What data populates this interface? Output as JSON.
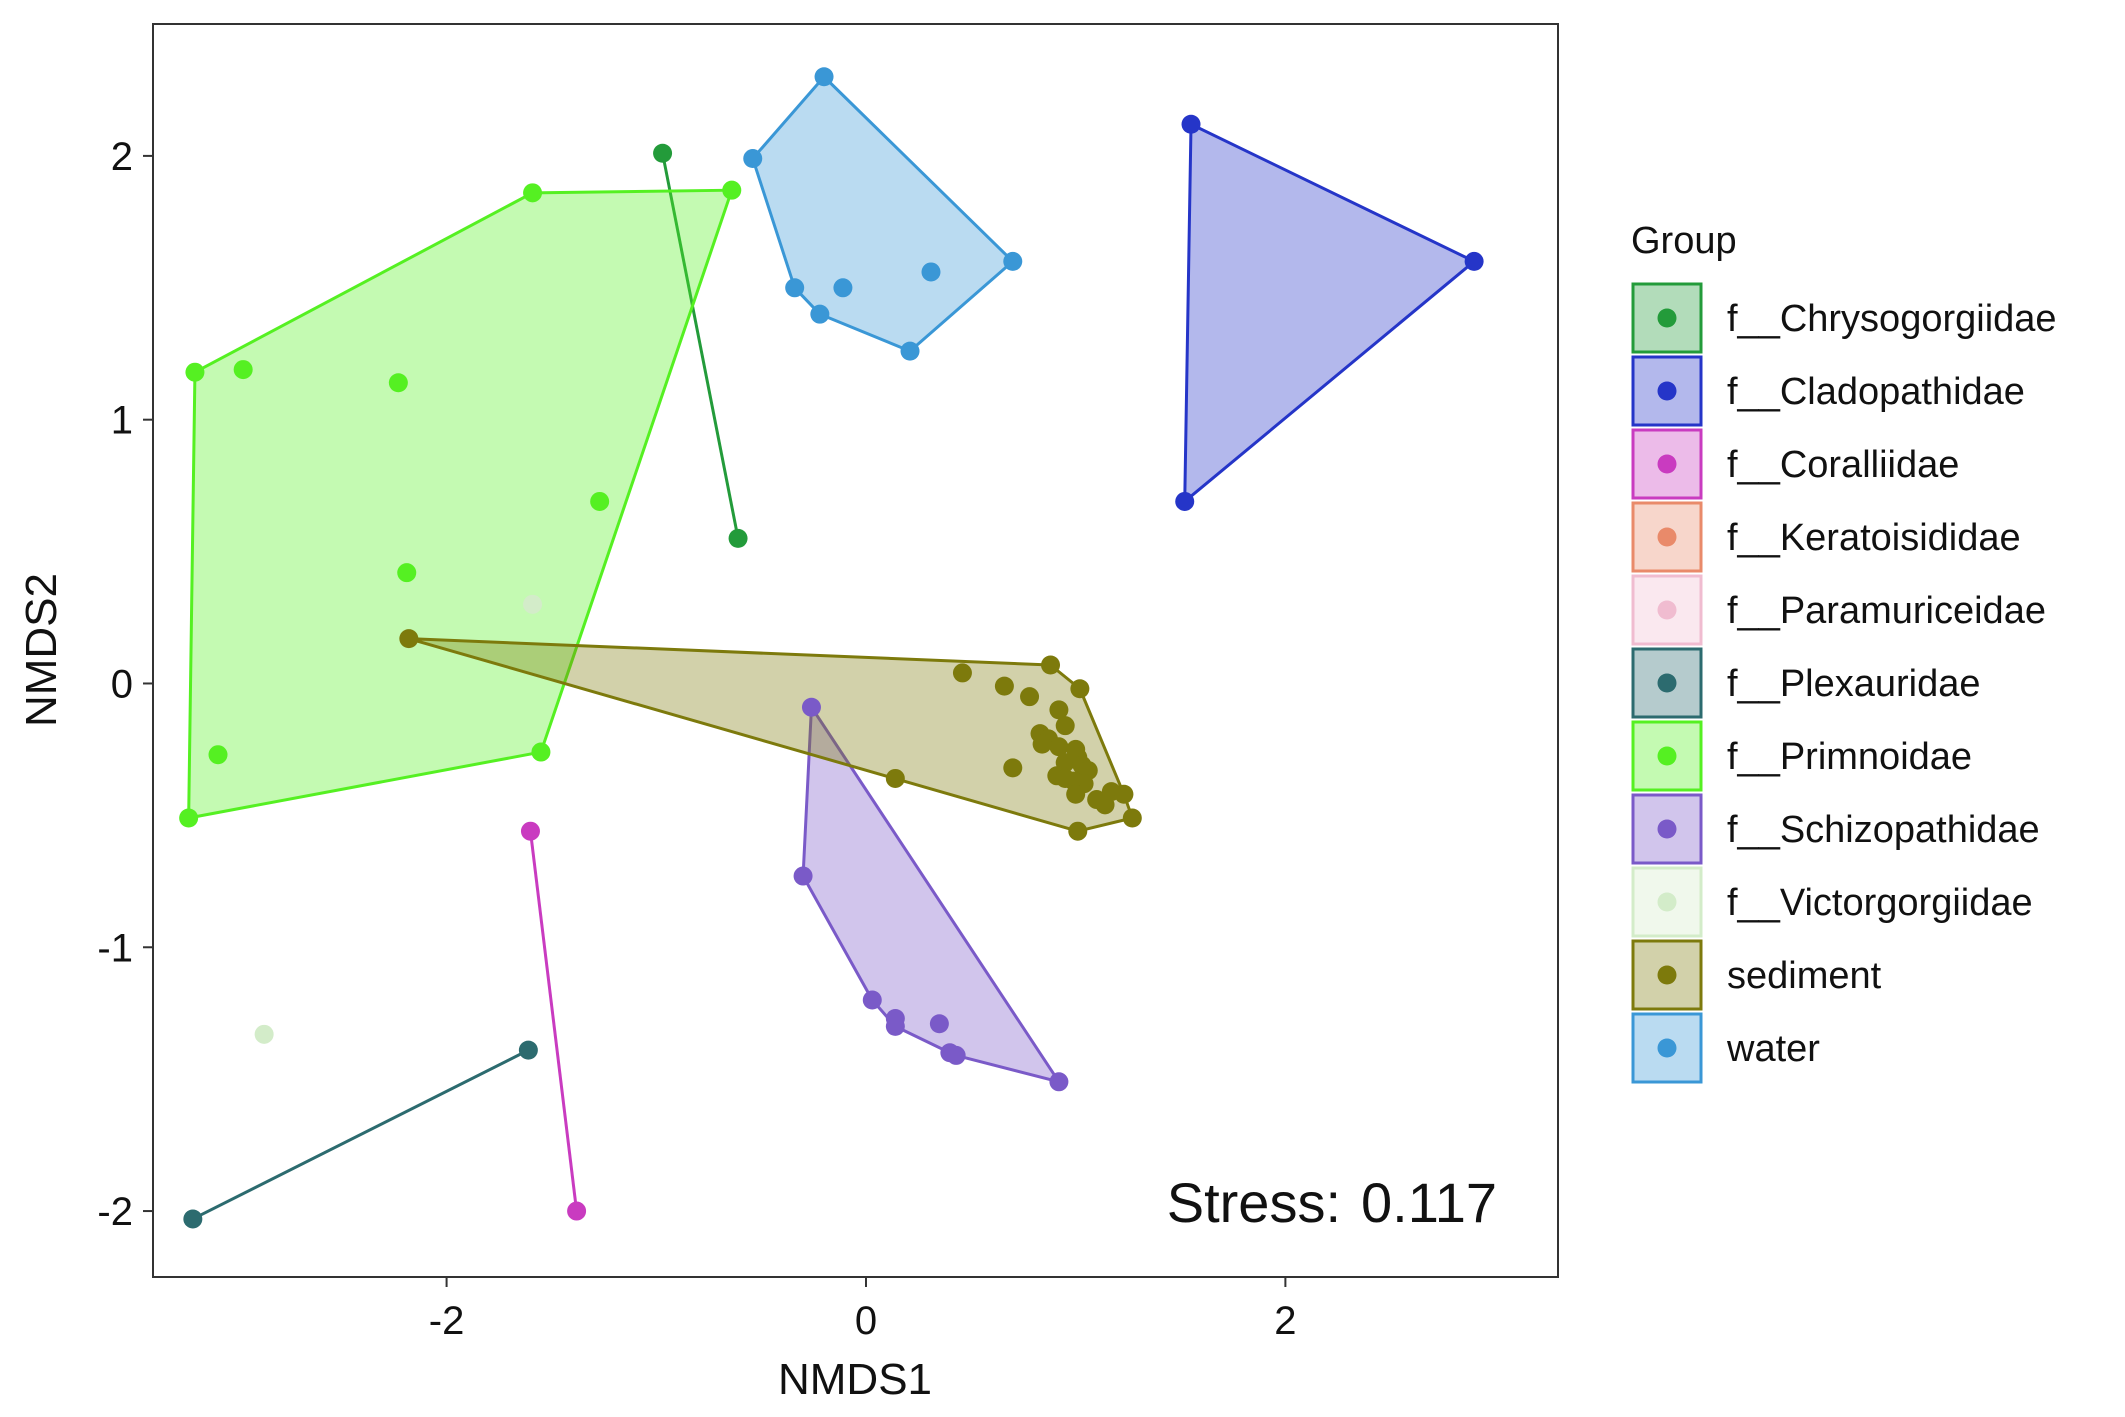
{
  "chart_data": {
    "type": "scatter",
    "xlabel": "NMDS1",
    "ylabel": "NMDS2",
    "xlim": [
      -3.4,
      3.3
    ],
    "ylim": [
      -2.25,
      2.5
    ],
    "x_ticks": [
      -2,
      0,
      2
    ],
    "y_ticks": [
      -2,
      -1,
      0,
      1,
      2
    ],
    "grid": false,
    "hulls": true,
    "stress_label": "Stress:",
    "stress_value": "0.117",
    "legend": {
      "title": "Group",
      "position": "right"
    },
    "series": [
      {
        "name": "f__Chrysogorgiidae",
        "color": "#239b3a",
        "points": [
          [
            -0.97,
            2.01
          ],
          [
            -0.61,
            0.55
          ]
        ]
      },
      {
        "name": "f__Cladopathidae",
        "color": "#2535c8",
        "points": [
          [
            1.55,
            2.12
          ],
          [
            2.9,
            1.6
          ],
          [
            1.52,
            0.69
          ]
        ]
      },
      {
        "name": "f__Coralliidae",
        "color": "#c93bc0",
        "points": [
          [
            -1.6,
            -0.56
          ],
          [
            -1.38,
            -2.0
          ]
        ]
      },
      {
        "name": "f__Keratoisididae",
        "color": "#e98a6a",
        "points": []
      },
      {
        "name": "f__Paramuriceidae",
        "color": "#f0bcd0",
        "points": []
      },
      {
        "name": "f__Plexauridae",
        "color": "#2c6b6f",
        "points": [
          [
            -1.61,
            -1.39
          ],
          [
            -3.21,
            -2.03
          ]
        ]
      },
      {
        "name": "f__Primnoidae",
        "color": "#55f022",
        "points": [
          [
            -1.59,
            1.86
          ],
          [
            -3.2,
            1.18
          ],
          [
            -2.97,
            1.19
          ],
          [
            -2.23,
            1.14
          ],
          [
            -1.27,
            0.69
          ],
          [
            -2.19,
            0.42
          ],
          [
            -3.09,
            -0.27
          ],
          [
            -1.55,
            -0.26
          ],
          [
            -3.23,
            -0.51
          ],
          [
            -0.64,
            1.87
          ]
        ]
      },
      {
        "name": "f__Schizopathidae",
        "color": "#7a5ac8",
        "points": [
          [
            -0.26,
            -0.09
          ],
          [
            -0.3,
            -0.73
          ],
          [
            0.03,
            -1.2
          ],
          [
            0.14,
            -1.27
          ],
          [
            0.14,
            -1.3
          ],
          [
            0.35,
            -1.29
          ],
          [
            0.4,
            -1.4
          ],
          [
            0.43,
            -1.41
          ],
          [
            0.92,
            -1.51
          ]
        ]
      },
      {
        "name": "f__Victorgorgiidae",
        "color": "#d3ecc9",
        "points": [
          [
            -2.87,
            -1.33
          ],
          [
            -1.59,
            0.3
          ]
        ]
      },
      {
        "name": "sediment",
        "color": "#7d7a0c",
        "points": [
          [
            0.46,
            0.04
          ],
          [
            0.88,
            0.07
          ],
          [
            1.02,
            -0.02
          ],
          [
            0.66,
            -0.01
          ],
          [
            0.78,
            -0.05
          ],
          [
            0.92,
            -0.1
          ],
          [
            0.95,
            -0.16
          ],
          [
            0.83,
            -0.19
          ],
          [
            0.87,
            -0.21
          ],
          [
            0.84,
            -0.23
          ],
          [
            0.92,
            -0.24
          ],
          [
            1.0,
            -0.25
          ],
          [
            1.01,
            -0.28
          ],
          [
            0.95,
            -0.3
          ],
          [
            1.03,
            -0.31
          ],
          [
            1.06,
            -0.33
          ],
          [
            0.91,
            -0.35
          ],
          [
            0.95,
            -0.36
          ],
          [
            0.7,
            -0.32
          ],
          [
            0.99,
            -0.37
          ],
          [
            1.04,
            -0.38
          ],
          [
            1.0,
            -0.42
          ],
          [
            1.1,
            -0.44
          ],
          [
            1.17,
            -0.41
          ],
          [
            1.23,
            -0.42
          ],
          [
            1.14,
            -0.46
          ],
          [
            1.27,
            -0.51
          ],
          [
            1.01,
            -0.56
          ],
          [
            0.14,
            -0.36
          ],
          [
            -2.18,
            0.17
          ]
        ]
      },
      {
        "name": "water",
        "color": "#3a97d6",
        "points": [
          [
            -0.2,
            2.3
          ],
          [
            -0.54,
            1.99
          ],
          [
            0.7,
            1.6
          ],
          [
            -0.34,
            1.5
          ],
          [
            -0.11,
            1.5
          ],
          [
            0.31,
            1.56
          ],
          [
            -0.22,
            1.4
          ],
          [
            0.21,
            1.26
          ]
        ]
      }
    ]
  }
}
